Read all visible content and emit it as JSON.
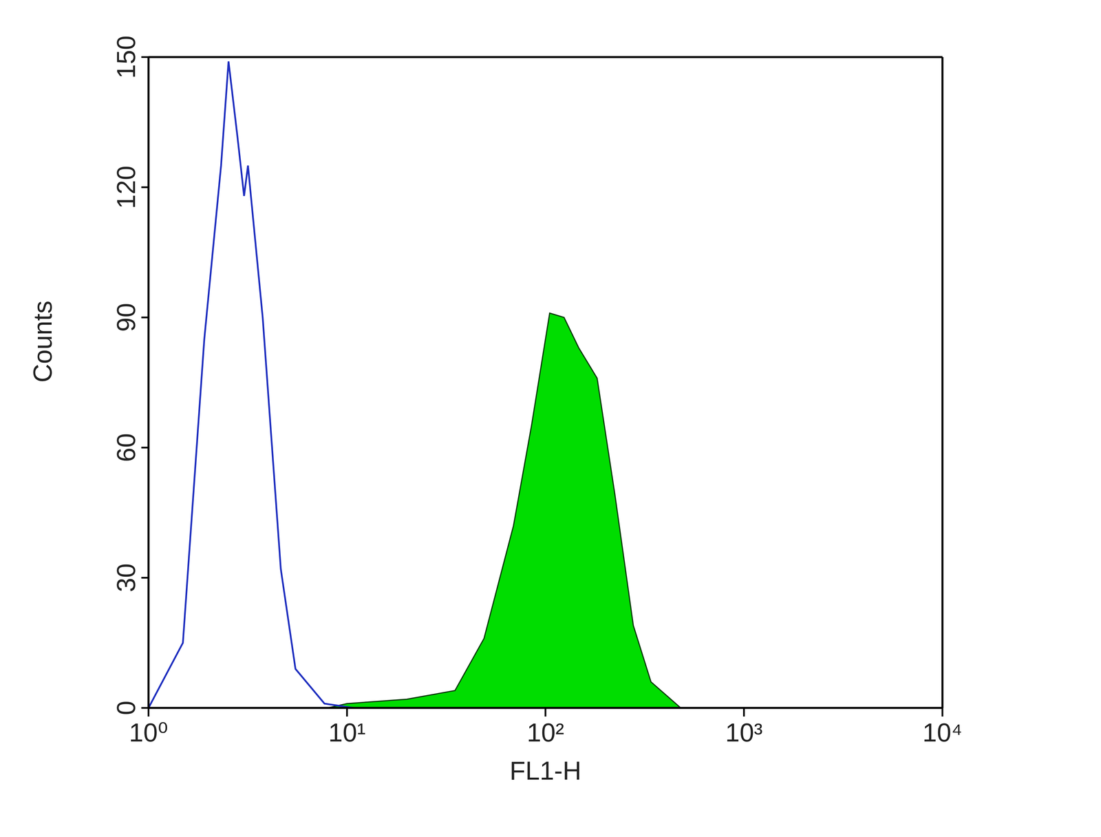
{
  "chart_data": {
    "type": "line",
    "x_label": "FL1-H",
    "y_label": "Counts",
    "log": "x",
    "xlim": [
      1,
      10000
    ],
    "xticks": [
      {
        "value": 1,
        "label": "10⁰"
      },
      {
        "value": 10,
        "label": "10¹"
      },
      {
        "value": 100,
        "label": "10²"
      },
      {
        "value": 1000,
        "label": "10³"
      },
      {
        "value": 10000,
        "label": "10⁴"
      }
    ],
    "ylim": [
      0,
      150
    ],
    "yticks": [
      0,
      30,
      60,
      90,
      120,
      150
    ],
    "grid": false,
    "series": [
      {
        "type": "line",
        "color": "#1f2fbf",
        "x": [
          1,
          1.49,
          1.91,
          2.32,
          2.53,
          2.8,
          3.03,
          3.17,
          3.76,
          4.64,
          5.5,
          7.7,
          10.8
        ],
        "values": [
          0,
          15,
          85,
          125,
          149,
          132,
          118,
          125,
          90,
          32,
          9,
          1,
          0
        ]
      },
      {
        "type": "area",
        "color": "#00dd00",
        "x": [
          8,
          10,
          20,
          35,
          49,
          69,
          85,
          105,
          124,
          147,
          182,
          224,
          277,
          340,
          480,
          700
        ],
        "values": [
          0,
          1,
          2,
          4,
          16,
          42,
          65,
          91,
          90,
          83,
          76,
          49,
          19,
          6,
          0,
          0
        ]
      }
    ]
  }
}
